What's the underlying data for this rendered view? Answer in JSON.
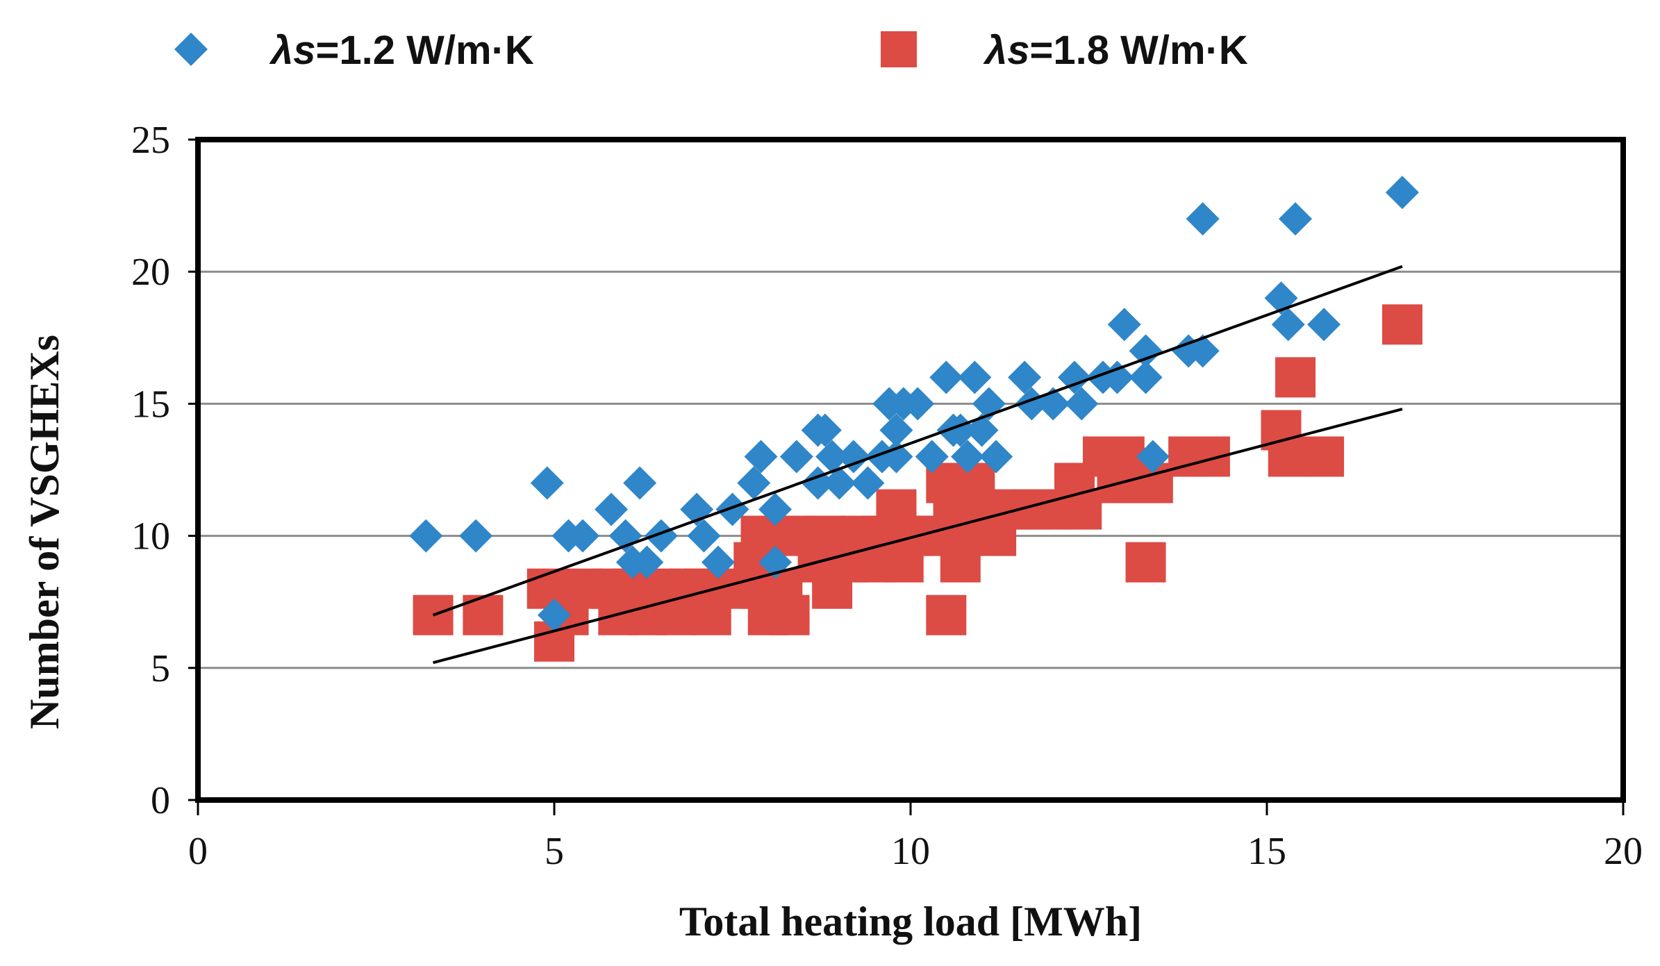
{
  "chart_data": {
    "type": "scatter",
    "title": "",
    "xlabel": "Total heating load [MWh]",
    "ylabel": "Number of VSGHEXs",
    "xlim": [
      0,
      20
    ],
    "ylim": [
      0,
      25
    ],
    "xticks": [
      "0",
      "5",
      "10",
      "15",
      "20"
    ],
    "yticks": [
      "0",
      "5",
      "10",
      "15",
      "20",
      "25"
    ],
    "grid": "horizontal",
    "legend_position": "top",
    "colors": {
      "series_1": "#2f86c8",
      "series_2": "#dd4b45",
      "trend": "#000000",
      "grid": "#8c8c8c",
      "frame": "#000000"
    },
    "series": [
      {
        "name": "λs=1.2 W/m·K",
        "legend_symbol": "λs",
        "legend_text": "=1.2 W/m·K",
        "marker": "diamond",
        "points": [
          [
            3.2,
            10
          ],
          [
            3.9,
            10
          ],
          [
            4.9,
            12
          ],
          [
            5.2,
            10
          ],
          [
            5.4,
            10
          ],
          [
            5.8,
            11
          ],
          [
            6.0,
            10
          ],
          [
            6.2,
            12
          ],
          [
            6.3,
            9
          ],
          [
            6.5,
            10
          ],
          [
            6.1,
            9
          ],
          [
            7.0,
            11
          ],
          [
            7.1,
            10
          ],
          [
            7.3,
            9
          ],
          [
            7.5,
            11
          ],
          [
            7.8,
            12
          ],
          [
            7.9,
            13
          ],
          [
            8.1,
            11
          ],
          [
            8.4,
            13
          ],
          [
            8.7,
            14
          ],
          [
            8.8,
            14
          ],
          [
            8.9,
            13
          ],
          [
            8.7,
            12
          ],
          [
            9.0,
            12
          ],
          [
            9.2,
            13
          ],
          [
            9.4,
            12
          ],
          [
            9.6,
            13
          ],
          [
            9.7,
            15
          ],
          [
            9.8,
            14
          ],
          [
            9.9,
            15
          ],
          [
            9.8,
            13
          ],
          [
            10.1,
            15
          ],
          [
            10.3,
            13
          ],
          [
            10.5,
            16
          ],
          [
            10.6,
            14
          ],
          [
            10.7,
            14
          ],
          [
            10.8,
            13
          ],
          [
            10.9,
            16
          ],
          [
            11.0,
            14
          ],
          [
            11.1,
            15
          ],
          [
            11.2,
            13
          ],
          [
            11.6,
            16
          ],
          [
            11.7,
            15
          ],
          [
            12.0,
            15
          ],
          [
            12.3,
            16
          ],
          [
            12.4,
            15
          ],
          [
            12.7,
            16
          ],
          [
            12.9,
            16
          ],
          [
            13.0,
            18
          ],
          [
            13.3,
            17
          ],
          [
            13.3,
            16
          ],
          [
            13.4,
            13
          ],
          [
            13.9,
            17
          ],
          [
            14.1,
            17
          ],
          [
            14.1,
            22
          ],
          [
            15.2,
            19
          ],
          [
            15.3,
            18
          ],
          [
            15.4,
            22
          ],
          [
            15.8,
            18
          ],
          [
            16.9,
            23
          ],
          [
            5.0,
            7
          ],
          [
            8.1,
            9
          ]
        ]
      },
      {
        "name": "λs=1.8 W/m·K",
        "legend_symbol": "λs",
        "legend_text": "=1.8 W/m·K",
        "marker": "square",
        "points": [
          [
            3.3,
            7
          ],
          [
            4.0,
            7
          ],
          [
            4.9,
            8
          ],
          [
            5.0,
            6
          ],
          [
            5.2,
            7
          ],
          [
            5.4,
            8
          ],
          [
            5.8,
            8
          ],
          [
            5.9,
            7
          ],
          [
            6.1,
            8
          ],
          [
            6.3,
            7
          ],
          [
            6.5,
            8
          ],
          [
            6.7,
            7
          ],
          [
            6.9,
            8
          ],
          [
            7.1,
            8
          ],
          [
            7.2,
            7
          ],
          [
            7.5,
            8
          ],
          [
            7.8,
            9
          ],
          [
            7.9,
            10
          ],
          [
            7.9,
            8
          ],
          [
            8.0,
            7
          ],
          [
            8.2,
            8
          ],
          [
            8.3,
            7
          ],
          [
            8.4,
            10
          ],
          [
            8.7,
            9
          ],
          [
            8.8,
            10
          ],
          [
            8.9,
            8
          ],
          [
            9.1,
            9
          ],
          [
            9.3,
            10
          ],
          [
            9.5,
            9
          ],
          [
            9.6,
            10
          ],
          [
            9.8,
            11
          ],
          [
            9.9,
            9
          ],
          [
            10.0,
            10
          ],
          [
            10.3,
            10
          ],
          [
            10.5,
            12
          ],
          [
            10.5,
            7
          ],
          [
            10.6,
            11
          ],
          [
            10.7,
            10
          ],
          [
            10.7,
            9
          ],
          [
            10.9,
            12
          ],
          [
            11.0,
            11
          ],
          [
            11.2,
            10
          ],
          [
            11.4,
            11
          ],
          [
            11.7,
            11
          ],
          [
            12.0,
            11
          ],
          [
            12.3,
            12
          ],
          [
            12.4,
            11
          ],
          [
            12.7,
            13
          ],
          [
            12.9,
            12
          ],
          [
            13.0,
            13
          ],
          [
            13.2,
            12
          ],
          [
            13.3,
            9
          ],
          [
            13.4,
            12
          ],
          [
            13.9,
            13
          ],
          [
            14.2,
            13
          ],
          [
            15.2,
            14
          ],
          [
            15.3,
            13
          ],
          [
            15.4,
            16
          ],
          [
            15.8,
            13
          ],
          [
            16.9,
            18
          ]
        ]
      }
    ],
    "trendlines": [
      {
        "series": "λs=1.2 W/m·K",
        "x": [
          3.3,
          16.9
        ],
        "y": [
          7.0,
          20.2
        ]
      },
      {
        "series": "λs=1.8 W/m·K",
        "x": [
          3.3,
          16.9
        ],
        "y": [
          5.2,
          14.8
        ]
      }
    ]
  }
}
